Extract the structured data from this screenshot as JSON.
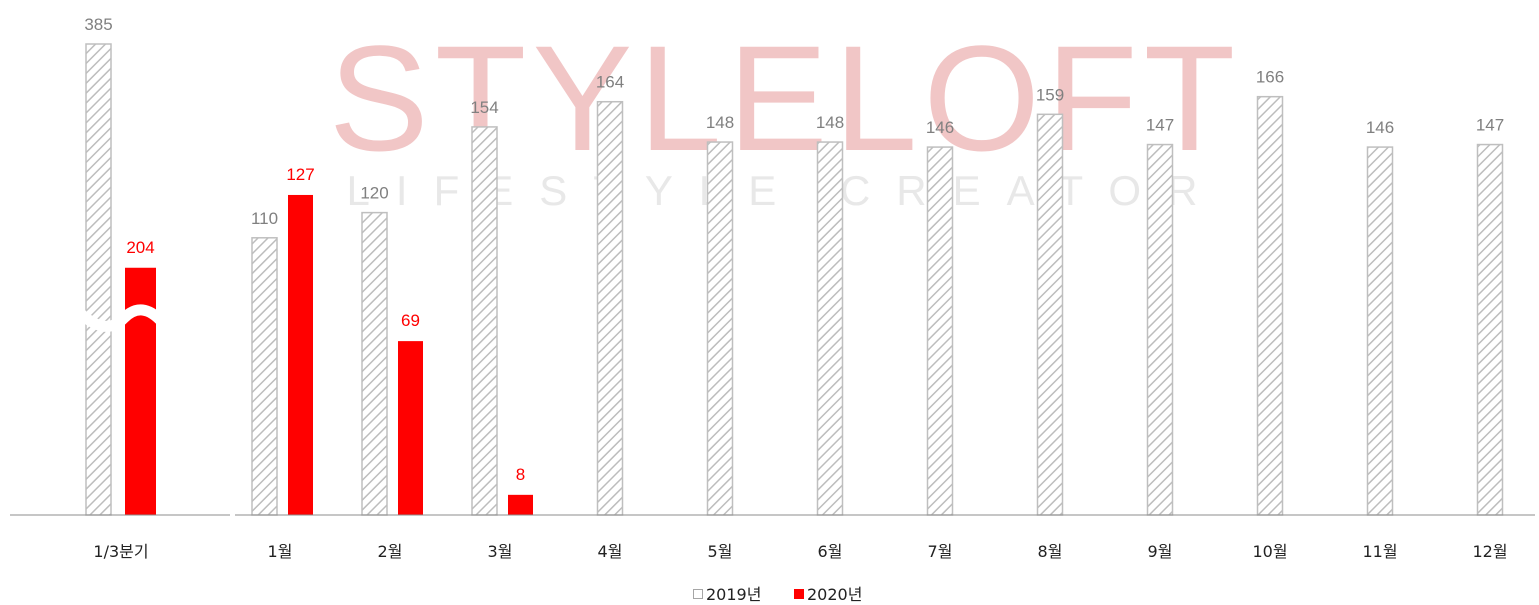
{
  "watermark": {
    "brand": "STYLELOFT",
    "tagline": "LIFESTYLE CREATOR"
  },
  "chart_data": {
    "type": "bar",
    "categories": [
      "1/3분기",
      "1월",
      "2월",
      "3월",
      "4월",
      "5월",
      "6월",
      "7월",
      "8월",
      "9월",
      "10월",
      "11월",
      "12월"
    ],
    "series": [
      {
        "name": "2019년",
        "values": [
          385,
          110,
          120,
          154,
          164,
          148,
          148,
          146,
          159,
          147,
          166,
          146,
          147
        ],
        "pattern": "diagonal-hatch",
        "color": "#a6a6a6"
      },
      {
        "name": "2020년",
        "values": [
          204,
          127,
          69,
          8,
          null,
          null,
          null,
          null,
          null,
          null,
          null,
          null,
          null
        ],
        "color": "#ff0000"
      }
    ],
    "axis_break_on_first_category": true,
    "legend_position": "bottom",
    "grid": false,
    "value_label_colors": {
      "2019년": "#808080",
      "2020년": "#ff0000"
    }
  }
}
